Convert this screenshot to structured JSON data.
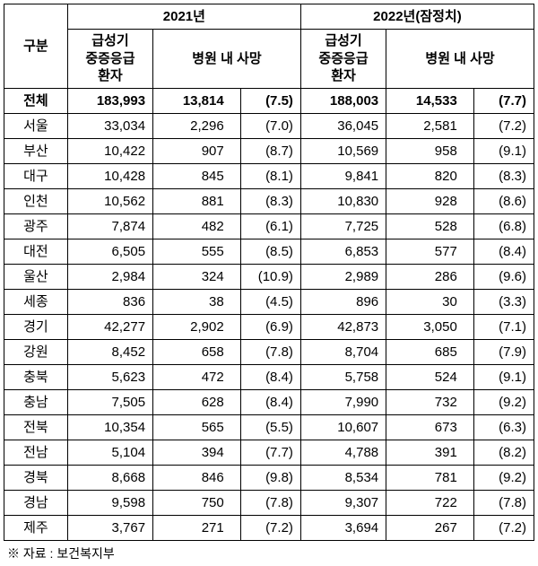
{
  "table": {
    "headers": {
      "region": "구분",
      "year2021": "2021년",
      "year2022": "2022년(잠정치)",
      "patients": "급성기\n중증응급\n환자",
      "deaths": "병원 내 사망"
    },
    "rows": [
      {
        "region": "전체",
        "p21": "183,993",
        "d21": "13,814",
        "r21": "(7.5)",
        "p22": "188,003",
        "d22": "14,533",
        "r22": "(7.7)",
        "bold": true
      },
      {
        "region": "서울",
        "p21": "33,034",
        "d21": "2,296",
        "r21": "(7.0)",
        "p22": "36,045",
        "d22": "2,581",
        "r22": "(7.2)"
      },
      {
        "region": "부산",
        "p21": "10,422",
        "d21": "907",
        "r21": "(8.7)",
        "p22": "10,569",
        "d22": "958",
        "r22": "(9.1)"
      },
      {
        "region": "대구",
        "p21": "10,428",
        "d21": "845",
        "r21": "(8.1)",
        "p22": "9,841",
        "d22": "820",
        "r22": "(8.3)"
      },
      {
        "region": "인천",
        "p21": "10,562",
        "d21": "881",
        "r21": "(8.3)",
        "p22": "10,830",
        "d22": "928",
        "r22": "(8.6)"
      },
      {
        "region": "광주",
        "p21": "7,874",
        "d21": "482",
        "r21": "(6.1)",
        "p22": "7,725",
        "d22": "528",
        "r22": "(6.8)"
      },
      {
        "region": "대전",
        "p21": "6,505",
        "d21": "555",
        "r21": "(8.5)",
        "p22": "6,853",
        "d22": "577",
        "r22": "(8.4)"
      },
      {
        "region": "울산",
        "p21": "2,984",
        "d21": "324",
        "r21": "(10.9)",
        "p22": "2,989",
        "d22": "286",
        "r22": "(9.6)"
      },
      {
        "region": "세종",
        "p21": "836",
        "d21": "38",
        "r21": "(4.5)",
        "p22": "896",
        "d22": "30",
        "r22": "(3.3)"
      },
      {
        "region": "경기",
        "p21": "42,277",
        "d21": "2,902",
        "r21": "(6.9)",
        "p22": "42,873",
        "d22": "3,050",
        "r22": "(7.1)"
      },
      {
        "region": "강원",
        "p21": "8,452",
        "d21": "658",
        "r21": "(7.8)",
        "p22": "8,704",
        "d22": "685",
        "r22": "(7.9)"
      },
      {
        "region": "충북",
        "p21": "5,623",
        "d21": "472",
        "r21": "(8.4)",
        "p22": "5,758",
        "d22": "524",
        "r22": "(9.1)"
      },
      {
        "region": "충남",
        "p21": "7,505",
        "d21": "628",
        "r21": "(8.4)",
        "p22": "7,990",
        "d22": "732",
        "r22": "(9.2)"
      },
      {
        "region": "전북",
        "p21": "10,354",
        "d21": "565",
        "r21": "(5.5)",
        "p22": "10,607",
        "d22": "673",
        "r22": "(6.3)"
      },
      {
        "region": "전남",
        "p21": "5,104",
        "d21": "394",
        "r21": "(7.7)",
        "p22": "4,788",
        "d22": "391",
        "r22": "(8.2)"
      },
      {
        "region": "경북",
        "p21": "8,668",
        "d21": "846",
        "r21": "(9.8)",
        "p22": "8,534",
        "d22": "781",
        "r22": "(9.2)"
      },
      {
        "region": "경남",
        "p21": "9,598",
        "d21": "750",
        "r21": "(7.8)",
        "p22": "9,307",
        "d22": "722",
        "r22": "(7.8)"
      },
      {
        "region": "제주",
        "p21": "3,767",
        "d21": "271",
        "r21": "(7.2)",
        "p22": "3,694",
        "d22": "267",
        "r22": "(7.2)"
      }
    ]
  },
  "footnote": "※ 자료 : 보건복지부",
  "style": {
    "border_color": "#000000",
    "background_color": "#ffffff",
    "font_size_body": 15,
    "font_size_footnote": 14
  }
}
